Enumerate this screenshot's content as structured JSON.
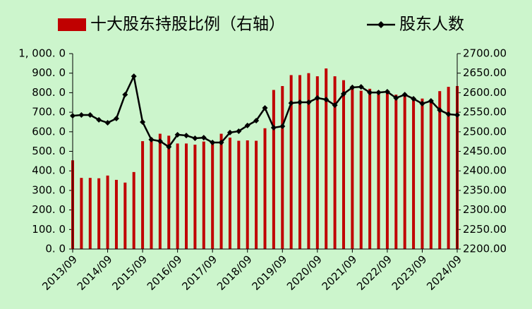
{
  "chart_data": {
    "type": "bar_line",
    "categories": [
      "2013/09",
      null,
      null,
      null,
      "2014/09",
      null,
      null,
      null,
      "2015/09",
      null,
      null,
      null,
      "2016/09",
      null,
      null,
      null,
      "2017/09",
      null,
      null,
      null,
      "2018/09",
      null,
      null,
      null,
      "2019/09",
      null,
      null,
      null,
      "2020/09",
      null,
      null,
      null,
      "2021/09",
      null,
      null,
      null,
      "2022/09",
      null,
      null,
      null,
      "2023/09",
      null,
      null,
      null,
      "2024/09"
    ],
    "series": [
      {
        "name": "十大股东持股比例（右轴）",
        "type": "bar",
        "axis": "y2",
        "color": "#c00000",
        "values": [
          2427,
          2382,
          2382,
          2381,
          2388,
          2377,
          2370,
          2397,
          2476,
          2485,
          2495,
          2490,
          2470,
          2470,
          2467,
          2475,
          2472,
          2495,
          2485,
          2477,
          2478,
          2477,
          2509,
          2607,
          2617,
          2645,
          2645,
          2650,
          2642,
          2662,
          2642,
          2632,
          2615,
          2605,
          2610,
          2605,
          2600,
          2595,
          2592,
          2587,
          2585,
          2582,
          2604,
          2615,
          2617
        ]
      },
      {
        "name": "股东人数",
        "type": "line",
        "axis": "y",
        "color": "#000000",
        "values": [
          682,
          686,
          686,
          661,
          646,
          668,
          790,
          884,
          650,
          560,
          552,
          523,
          585,
          581,
          567,
          570,
          545,
          545,
          596,
          603,
          632,
          657,
          722,
          621,
          628,
          747,
          751,
          751,
          773,
          765,
          736,
          794,
          827,
          830,
          801,
          801,
          805,
          773,
          790,
          769,
          744,
          758,
          711,
          690,
          686
        ]
      }
    ],
    "ylim": [
      0,
      1000
    ],
    "yticks": [
      {
        "value": 0,
        "label": "0. 0"
      },
      {
        "value": 100,
        "label": "100. 0"
      },
      {
        "value": 200,
        "label": "200. 0"
      },
      {
        "value": 300,
        "label": "300. 0"
      },
      {
        "value": 400,
        "label": "400. 0"
      },
      {
        "value": 500,
        "label": "500. 0"
      },
      {
        "value": 600,
        "label": "600. 0"
      },
      {
        "value": 700,
        "label": "700. 0"
      },
      {
        "value": 800,
        "label": "800. 0"
      },
      {
        "value": 900,
        "label": "900. 0"
      },
      {
        "value": 1000,
        "label": "1, 000. 0"
      }
    ],
    "y2lim": [
      2200,
      2700
    ],
    "y2ticks": [
      {
        "value": 2200,
        "label": "2200.00"
      },
      {
        "value": 2250,
        "label": "2250.00"
      },
      {
        "value": 2300,
        "label": "2300.00"
      },
      {
        "value": 2350,
        "label": "2350.00"
      },
      {
        "value": 2400,
        "label": "2400.00"
      },
      {
        "value": 2450,
        "label": "2450.00"
      },
      {
        "value": 2500,
        "label": "2500.00"
      },
      {
        "value": 2550,
        "label": "2550.00"
      },
      {
        "value": 2600,
        "label": "2600.00"
      },
      {
        "value": 2650,
        "label": "2650.00"
      },
      {
        "value": 2700,
        "label": "2700.00"
      }
    ],
    "legend": "top"
  }
}
